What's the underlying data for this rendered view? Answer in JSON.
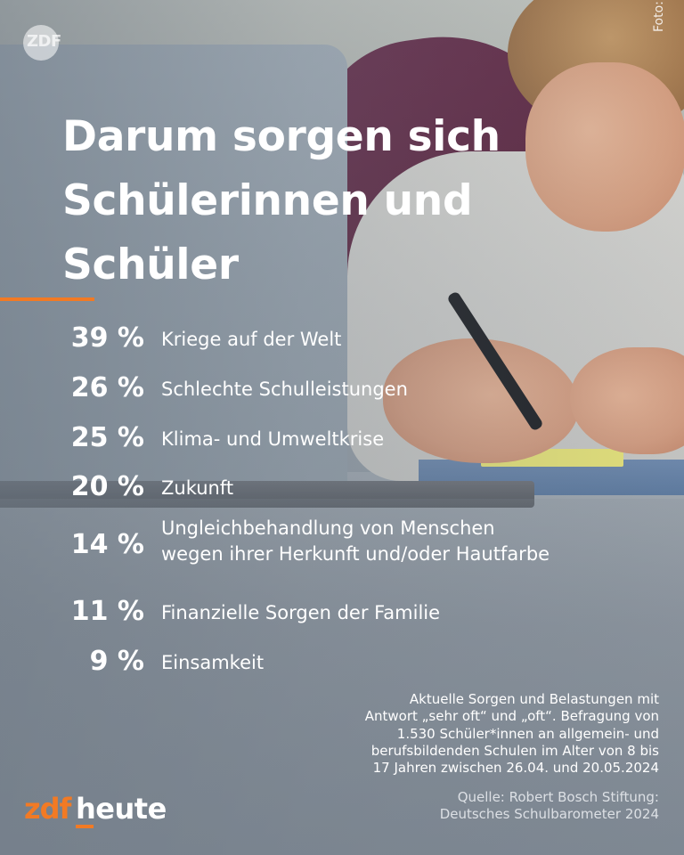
{
  "watermark": {
    "logo_text": "ZDF"
  },
  "photo_credit": "Foto: iStock/vm, Symbolbild",
  "headline": {
    "line1": "Darum sorgen sich",
    "line2": "Schülerinnen und",
    "line3": "Schüler"
  },
  "colors": {
    "accent": "#f27a24",
    "text": "#ffffff"
  },
  "items": [
    {
      "percent": "39 %",
      "label_line1": "Kriege auf der Welt",
      "label_line2": ""
    },
    {
      "percent": "26 %",
      "label_line1": "Schlechte Schulleistungen",
      "label_line2": ""
    },
    {
      "percent": "25 %",
      "label_line1": "Klima- und Umweltkrise",
      "label_line2": ""
    },
    {
      "percent": "20 %",
      "label_line1": "Zukunft",
      "label_line2": ""
    },
    {
      "percent": "14 %",
      "label_line1": "Ungleichbehandlung von Menschen",
      "label_line2": "wegen ihrer Herkunft und/oder Hautfarbe"
    },
    {
      "percent": "11 %",
      "label_line1": "Finanzielle Sorgen der Familie",
      "label_line2": ""
    },
    {
      "percent": "9 %",
      "label_line1": "Einsamkeit",
      "label_line2": ""
    }
  ],
  "footnote": {
    "line1": "Aktuelle Sorgen und Belastungen mit",
    "line2": "Antwort „sehr oft“ und „oft“. Befragung von",
    "line3": "1.530 Schüler*innen an allgemein- und",
    "line4": "berufsbildenden Schulen im Alter von 8 bis",
    "line5": "17 Jahren zwischen 26.04. und 20.05.2024"
  },
  "source": {
    "line1": "Quelle: Robert Bosch Stiftung:",
    "line2": "Deutsches Schulbarometer 2024"
  },
  "brand": {
    "zdf": "zdf",
    "heute": "heute"
  }
}
